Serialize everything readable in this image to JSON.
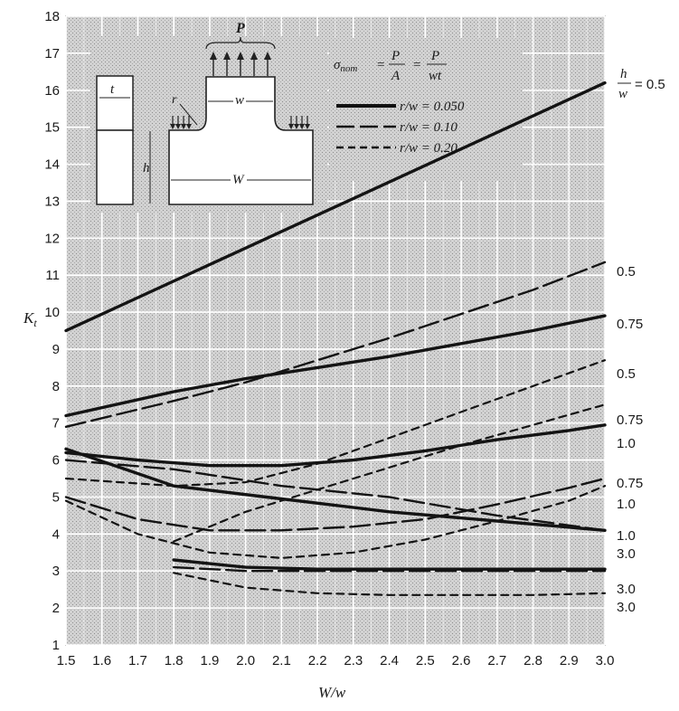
{
  "chart_data": {
    "type": "line",
    "xlabel": "W/w",
    "ylabel": "K_t",
    "xlim": [
      1.5,
      3.0
    ],
    "ylim": [
      1,
      18
    ],
    "x_ticks": [
      "1.5",
      "1.6",
      "1.7",
      "1.8",
      "1.9",
      "2.0",
      "2.1",
      "2.2",
      "2.3",
      "2.4",
      "2.5",
      "2.6",
      "2.7",
      "2.8",
      "2.9",
      "3.0"
    ],
    "y_ticks": [
      "1",
      "2",
      "3",
      "4",
      "5",
      "6",
      "7",
      "8",
      "9",
      "10",
      "11",
      "12",
      "13",
      "14",
      "15",
      "16",
      "17",
      "18"
    ],
    "grid": true,
    "legend": {
      "placement": "top-right",
      "formula": {
        "lhs": "σ",
        "lhs_sub": "nom",
        "n1": "P",
        "d1": "A",
        "n2": "P",
        "d2": "wt"
      },
      "entries": [
        {
          "style": "solid",
          "label": "r/w = 0.050"
        },
        {
          "style": "long-dash",
          "label": "r/w = 0.10"
        },
        {
          "style": "short-dash",
          "label": "r/w = 0.20"
        }
      ]
    },
    "end_header": {
      "num": "h",
      "den": "w",
      "suffix": "= 0.5"
    },
    "series": [
      {
        "style": "solid",
        "end_label": "",
        "x": [
          1.5,
          3.0
        ],
        "y": [
          9.5,
          16.2
        ]
      },
      {
        "style": "long-dash",
        "end_label": "0.5",
        "x": [
          1.5,
          1.8,
          2.0,
          2.2,
          2.4,
          2.6,
          2.8,
          3.0
        ],
        "y": [
          6.9,
          7.6,
          8.1,
          8.7,
          9.3,
          9.95,
          10.6,
          11.35
        ]
      },
      {
        "style": "solid",
        "end_label": "0.75",
        "x": [
          1.5,
          1.8,
          2.0,
          2.2,
          2.4,
          2.6,
          2.8,
          3.0
        ],
        "y": [
          7.2,
          7.85,
          8.2,
          8.5,
          8.8,
          9.15,
          9.5,
          9.9
        ]
      },
      {
        "style": "short-dash",
        "end_label": "0.5",
        "x": [
          1.5,
          1.8,
          2.0,
          2.2,
          2.4,
          2.6,
          2.8,
          3.0
        ],
        "y": [
          5.5,
          5.3,
          5.4,
          5.9,
          6.6,
          7.3,
          8.0,
          8.7
        ]
      },
      {
        "style": "short-dash",
        "end_label": "0.75",
        "x": [
          1.8,
          2.0,
          2.2,
          2.4,
          2.6,
          2.8,
          3.0
        ],
        "y": [
          3.8,
          4.6,
          5.2,
          5.8,
          6.4,
          6.95,
          7.5
        ]
      },
      {
        "style": "solid",
        "end_label": "1.0",
        "x": [
          1.5,
          1.7,
          1.9,
          2.1,
          2.3,
          2.5,
          2.7,
          2.9,
          3.0
        ],
        "y": [
          6.2,
          6.0,
          5.85,
          5.85,
          6.0,
          6.25,
          6.55,
          6.8,
          6.95
        ]
      },
      {
        "style": "long-dash",
        "end_label": "0.75",
        "x": [
          1.5,
          1.7,
          1.9,
          2.1,
          2.3,
          2.5,
          2.7,
          2.9,
          3.0
        ],
        "y": [
          5.0,
          4.4,
          4.1,
          4.1,
          4.2,
          4.4,
          4.8,
          5.25,
          5.5
        ]
      },
      {
        "style": "short-dash",
        "end_label": "1.0",
        "x": [
          1.5,
          1.7,
          1.9,
          2.1,
          2.3,
          2.5,
          2.7,
          2.9,
          3.0
        ],
        "y": [
          4.9,
          4.0,
          3.5,
          3.35,
          3.5,
          3.85,
          4.35,
          4.9,
          5.3
        ]
      },
      {
        "style": "long-dash",
        "end_label": "1.0",
        "x": [
          1.5,
          1.8,
          2.1,
          2.4,
          2.7,
          3.0
        ],
        "y": [
          6.0,
          5.75,
          5.3,
          5.0,
          4.5,
          4.1
        ]
      },
      {
        "style": "solid",
        "end_label": "3.0",
        "x": [
          1.5,
          1.8,
          2.1,
          2.4,
          2.7,
          3.0
        ],
        "y": [
          6.3,
          5.3,
          4.95,
          4.6,
          4.35,
          4.1
        ]
      },
      {
        "style": "solid",
        "end_label": "3.0",
        "x": [
          1.8,
          2.0,
          2.2,
          2.4,
          2.6,
          2.8,
          3.0
        ],
        "y": [
          3.3,
          3.1,
          3.05,
          3.05,
          3.05,
          3.05,
          3.05
        ]
      },
      {
        "style": "long-dash",
        "end_label": "",
        "x": [
          1.8,
          2.0,
          2.2,
          2.4,
          2.6,
          2.8,
          3.0
        ],
        "y": [
          3.1,
          3.0,
          3.0,
          3.0,
          3.0,
          3.0,
          3.0
        ]
      },
      {
        "style": "short-dash",
        "end_label": "3.0",
        "x": [
          1.8,
          2.0,
          2.2,
          2.4,
          2.6,
          2.8,
          3.0
        ],
        "y": [
          2.95,
          2.55,
          2.4,
          2.35,
          2.35,
          2.35,
          2.4
        ]
      }
    ]
  },
  "diagram": {
    "load": "P",
    "t": "t",
    "r": "r",
    "w": "w",
    "h": "h",
    "W": "W"
  }
}
